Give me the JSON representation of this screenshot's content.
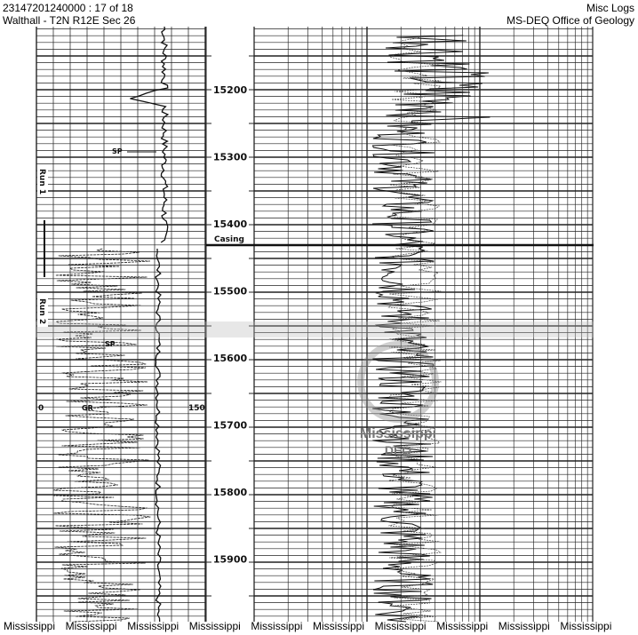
{
  "header": {
    "document_id": "23147201240000 : 17 of 18",
    "well_location": "Walthall - T2N R12E Sec 26",
    "category": "Misc Logs",
    "agency": "MS-DEQ Office of Geology"
  },
  "log": {
    "depth_labels": [
      "15200",
      "15300",
      "15400",
      "15500",
      "15600",
      "15700",
      "15800",
      "15900"
    ],
    "casing_label": "Casing",
    "run1_label": "Run 1",
    "run2_label": "Run 2",
    "sp_label_top": "SP",
    "sp_label_bottom": "SP",
    "gr_label": "GR",
    "gr_scale_min": "0",
    "gr_scale_max": "150"
  },
  "watermark": {
    "line1": "Mississippi",
    "line2": "DEQ"
  },
  "footer": {
    "labels": [
      "Mississippi",
      "Mississippi",
      "Mississippi",
      "Mississippi",
      "Mississippi",
      "Mississippi",
      "Mississippi",
      "Mississippi",
      "Mississippi",
      "Mississippi"
    ]
  }
}
